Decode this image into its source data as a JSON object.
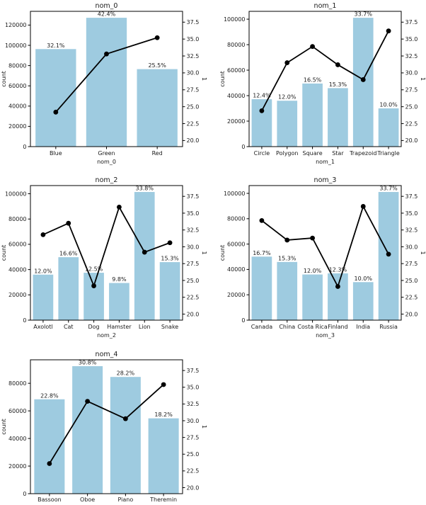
{
  "figure": {
    "title": "",
    "background_color": "#ffffff",
    "bar_color": "#9ecbe0",
    "line_color": "#000000",
    "marker_color": "#000000",
    "spine_color": "#000000",
    "text_color": "#1a1a1a",
    "empty_cell": true
  },
  "chart_data": [
    {
      "type": "bar",
      "overlay": "line",
      "title": "nom_0",
      "xlabel": "nom_0",
      "ylabel_left": "count",
      "ylabel_right": "1",
      "categories": [
        "Blue",
        "Green",
        "Red"
      ],
      "bar_values": [
        96300,
        127200,
        76500
      ],
      "bar_labels": [
        "32.1%",
        "42.4%",
        "25.5%"
      ],
      "line_values": [
        24.2,
        32.8,
        35.2
      ],
      "yticks_left": [
        0,
        20000,
        40000,
        60000,
        80000,
        100000,
        120000
      ],
      "ylim_left": [
        0,
        133560
      ],
      "yticks_right": [
        20.0,
        22.5,
        25.0,
        27.5,
        30.0,
        32.5,
        35.0,
        37.5
      ],
      "ylim_right": [
        19.1,
        39.1
      ],
      "grid": false,
      "legend": false
    },
    {
      "type": "bar",
      "overlay": "line",
      "title": "nom_1",
      "xlabel": "nom_1",
      "ylabel_left": "count",
      "ylabel_right": "1",
      "categories": [
        "Circle",
        "Polygon",
        "Square",
        "Star",
        "Trapezoid",
        "Triangle"
      ],
      "bar_values": [
        37200,
        36000,
        49500,
        45900,
        101100,
        30000
      ],
      "bar_labels": [
        "12.4%",
        "12.0%",
        "16.5%",
        "15.3%",
        "33.7%",
        "10.0%"
      ],
      "line_values": [
        24.4,
        31.5,
        33.9,
        31.2,
        29.0,
        36.2
      ],
      "yticks_left": [
        0,
        20000,
        40000,
        60000,
        80000,
        100000
      ],
      "ylim_left": [
        0,
        106155
      ],
      "yticks_right": [
        20.0,
        22.5,
        25.0,
        27.5,
        30.0,
        32.5,
        35.0,
        37.5
      ],
      "ylim_right": [
        19.1,
        39.1
      ],
      "grid": false,
      "legend": false
    },
    {
      "type": "bar",
      "overlay": "line",
      "title": "nom_2",
      "xlabel": "nom_2",
      "ylabel_left": "count",
      "ylabel_right": "1",
      "categories": [
        "Axolotl",
        "Cat",
        "Dog",
        "Hamster",
        "Lion",
        "Snake"
      ],
      "bar_values": [
        36000,
        49800,
        37500,
        29400,
        101400,
        45900
      ],
      "bar_labels": [
        "12.0%",
        "16.6%",
        "12.5%",
        "9.8%",
        "33.8%",
        "15.3%"
      ],
      "line_values": [
        31.8,
        33.5,
        24.2,
        35.9,
        29.2,
        30.6
      ],
      "yticks_left": [
        0,
        20000,
        40000,
        60000,
        80000,
        100000
      ],
      "ylim_left": [
        0,
        106470
      ],
      "yticks_right": [
        20.0,
        22.5,
        25.0,
        27.5,
        30.0,
        32.5,
        35.0,
        37.5
      ],
      "ylim_right": [
        19.1,
        39.1
      ],
      "grid": false,
      "legend": false
    },
    {
      "type": "bar",
      "overlay": "line",
      "title": "nom_3",
      "xlabel": "nom_3",
      "ylabel_left": "count",
      "ylabel_right": "1",
      "categories": [
        "Canada",
        "China",
        "Costa Rica",
        "Finland",
        "India",
        "Russia"
      ],
      "bar_values": [
        50100,
        45900,
        36000,
        36900,
        30000,
        101100
      ],
      "bar_labels": [
        "16.7%",
        "15.3%",
        "12.0%",
        "12.3%",
        "10.0%",
        "33.7%"
      ],
      "line_values": [
        33.9,
        31.0,
        31.3,
        24.1,
        36.0,
        28.9
      ],
      "yticks_left": [
        0,
        20000,
        40000,
        60000,
        80000,
        100000
      ],
      "ylim_left": [
        0,
        106155
      ],
      "yticks_right": [
        20.0,
        22.5,
        25.0,
        27.5,
        30.0,
        32.5,
        35.0,
        37.5
      ],
      "ylim_right": [
        19.1,
        39.1
      ],
      "grid": false,
      "legend": false
    },
    {
      "type": "bar",
      "overlay": "line",
      "title": "nom_4",
      "xlabel": "",
      "ylabel_left": "count",
      "ylabel_right": "1",
      "categories": [
        "Bassoon",
        "Oboe",
        "Piano",
        "Theremin"
      ],
      "bar_values": [
        68400,
        92400,
        84600,
        54600
      ],
      "bar_labels": [
        "22.8%",
        "30.8%",
        "28.2%",
        "18.2%"
      ],
      "line_values": [
        23.6,
        32.9,
        30.3,
        35.4
      ],
      "yticks_left": [
        0,
        20000,
        40000,
        60000,
        80000
      ],
      "ylim_left": [
        0,
        97020
      ],
      "yticks_right": [
        20.0,
        22.5,
        25.0,
        27.5,
        30.0,
        32.5,
        35.0,
        37.5
      ],
      "ylim_right": [
        19.1,
        39.1
      ],
      "grid": false,
      "legend": false
    }
  ]
}
